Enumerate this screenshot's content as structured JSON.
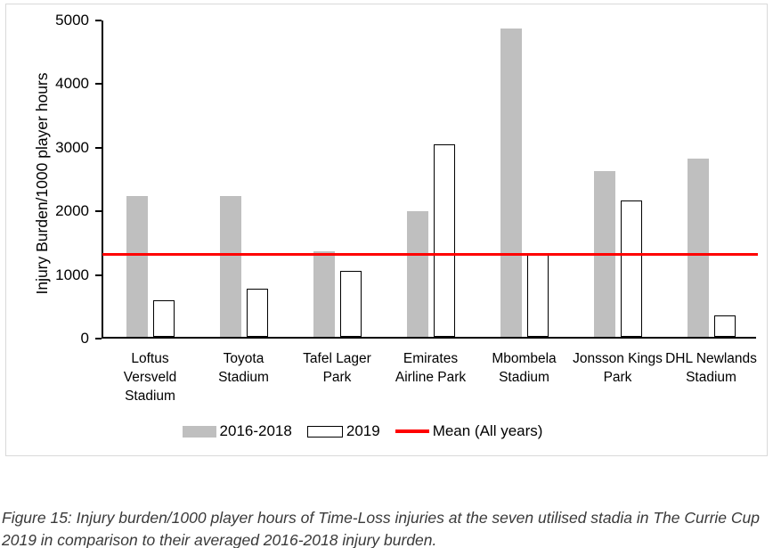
{
  "chart_data": {
    "type": "bar",
    "title": "",
    "xlabel": "",
    "ylabel": "Injury Burden/1000 player hours",
    "ylim": [
      0,
      5000
    ],
    "yticks": [
      0,
      1000,
      2000,
      3000,
      4000,
      5000
    ],
    "grid": false,
    "legend_position": "bottom",
    "categories": [
      "Loftus\nVersveld\nStadium",
      "Toyota\nStadium",
      "Tafel Lager\nPark",
      "Emirates\nAirline Park",
      "Mbombela\nStadium",
      "Jonsson Kings\nPark",
      "DHL Newlands\nStadium"
    ],
    "series": [
      {
        "name": "2016-2018",
        "style": "filled",
        "color": "#bfbfbf",
        "values": [
          2220,
          2210,
          1340,
          1970,
          4850,
          2600,
          2800
        ]
      },
      {
        "name": "2019",
        "style": "outlined",
        "color": "#ffffff",
        "border": "#000000",
        "values": [
          570,
          760,
          1030,
          3030,
          1310,
          2140,
          330
        ]
      }
    ],
    "mean_line": {
      "label": "Mean (All years)",
      "value": 1330,
      "color": "#ff0000"
    }
  },
  "legend": {
    "items": [
      {
        "label": "2016-2018"
      },
      {
        "label": "2019"
      },
      {
        "label": "Mean (All years)"
      }
    ]
  },
  "caption": {
    "lines": [
      "Figure 15: Injury burden/1000 player hours of Time-Loss injuries at the seven utilised stadia in The Currie Cup",
      "2019 in comparison to their averaged 2016-2018 injury burden."
    ]
  },
  "colors": {
    "bar_2016_2018": "#bfbfbf",
    "bar_2019_fill": "#ffffff",
    "bar_2019_border": "#000000",
    "mean_line": "#ff0000",
    "axis": "#000000",
    "frame_border": "#d9d9d9",
    "caption_text": "#3a3a3a"
  }
}
